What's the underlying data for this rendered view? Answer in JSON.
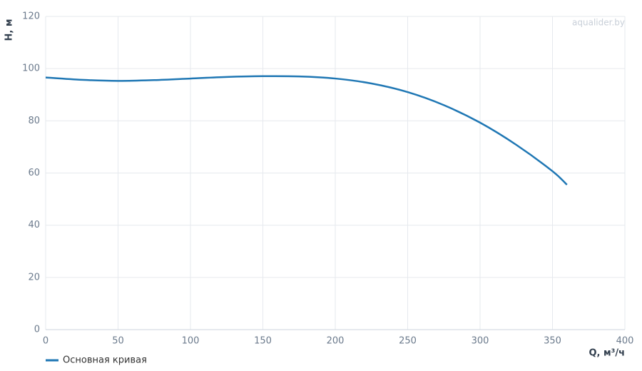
{
  "chart_data": {
    "type": "line",
    "x_label": "Q, м³/ч",
    "y_label": "H, м",
    "watermark": "aqualider.by",
    "x": [
      0,
      25,
      50,
      75,
      100,
      125,
      150,
      175,
      200,
      225,
      250,
      275,
      300,
      325,
      350,
      360
    ],
    "series": [
      {
        "name": "Основная кривая",
        "color": "#1f77b4",
        "values": [
          96.6,
          95.7,
          95.3,
          95.6,
          96.2,
          96.8,
          97.1,
          97.0,
          96.2,
          94.3,
          91.0,
          86.0,
          79.3,
          70.8,
          60.7,
          55.5
        ]
      }
    ],
    "xlim": [
      0,
      400
    ],
    "xticks": [
      0,
      50,
      100,
      150,
      200,
      250,
      300,
      350,
      400
    ],
    "ylim": [
      0,
      120
    ],
    "yticks": [
      0,
      20,
      40,
      60,
      80,
      100,
      120
    ],
    "grid": true
  }
}
